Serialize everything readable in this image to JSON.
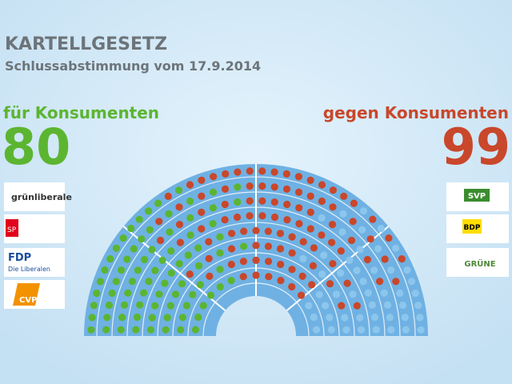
{
  "header": {
    "title": "KARTELLGESETZ",
    "subtitle": "Schlussabstimmung vom 17.9.2014"
  },
  "for": {
    "label": "für Konsumenten",
    "count": 80,
    "color": "#5cb531",
    "parties": [
      "grünliberale",
      "SP",
      "FDP",
      "Die Liberalen",
      "CVP"
    ]
  },
  "against": {
    "label": "gegen Konsumenten",
    "count": 99,
    "color": "#c9472b",
    "parties": [
      "SVP",
      "BDP",
      "GRÜNE"
    ]
  }
}
